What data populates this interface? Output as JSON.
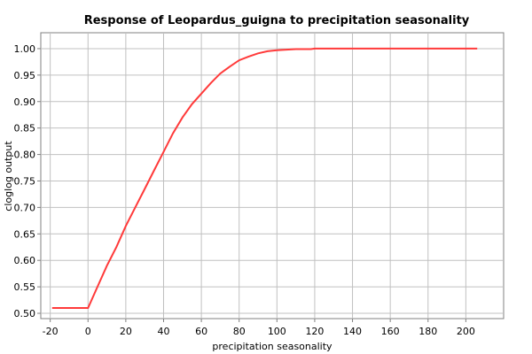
{
  "chart_data": {
    "type": "line",
    "title": "Response of Leopardus_guigna to precipitation seasonality",
    "xlabel": "precipitation seasonality",
    "ylabel": "cloglog output",
    "xlim": [
      -25,
      220
    ],
    "ylim": [
      0.49,
      1.03
    ],
    "x_ticks": [
      -20,
      0,
      20,
      40,
      60,
      80,
      100,
      120,
      140,
      160,
      180,
      200
    ],
    "y_ticks": [
      0.5,
      0.55,
      0.6,
      0.65,
      0.7,
      0.75,
      0.8,
      0.85,
      0.9,
      0.95,
      1.0
    ],
    "grid": true,
    "series_color": "#ff3a3a",
    "series": [
      {
        "x": [
          -19,
          0,
          5,
          10,
          15,
          20,
          25,
          30,
          35,
          40,
          45,
          50,
          55,
          60,
          65,
          70,
          75,
          80,
          85,
          90,
          95,
          100,
          105,
          110,
          118,
          120,
          140,
          160,
          180,
          206
        ],
        "y": [
          0.51,
          0.51,
          0.55,
          0.59,
          0.625,
          0.665,
          0.7,
          0.735,
          0.77,
          0.805,
          0.84,
          0.87,
          0.895,
          0.915,
          0.935,
          0.953,
          0.966,
          0.978,
          0.985,
          0.991,
          0.995,
          0.997,
          0.998,
          0.999,
          0.999,
          1.0,
          1.0,
          1.0,
          1.0,
          1.0
        ]
      }
    ]
  }
}
